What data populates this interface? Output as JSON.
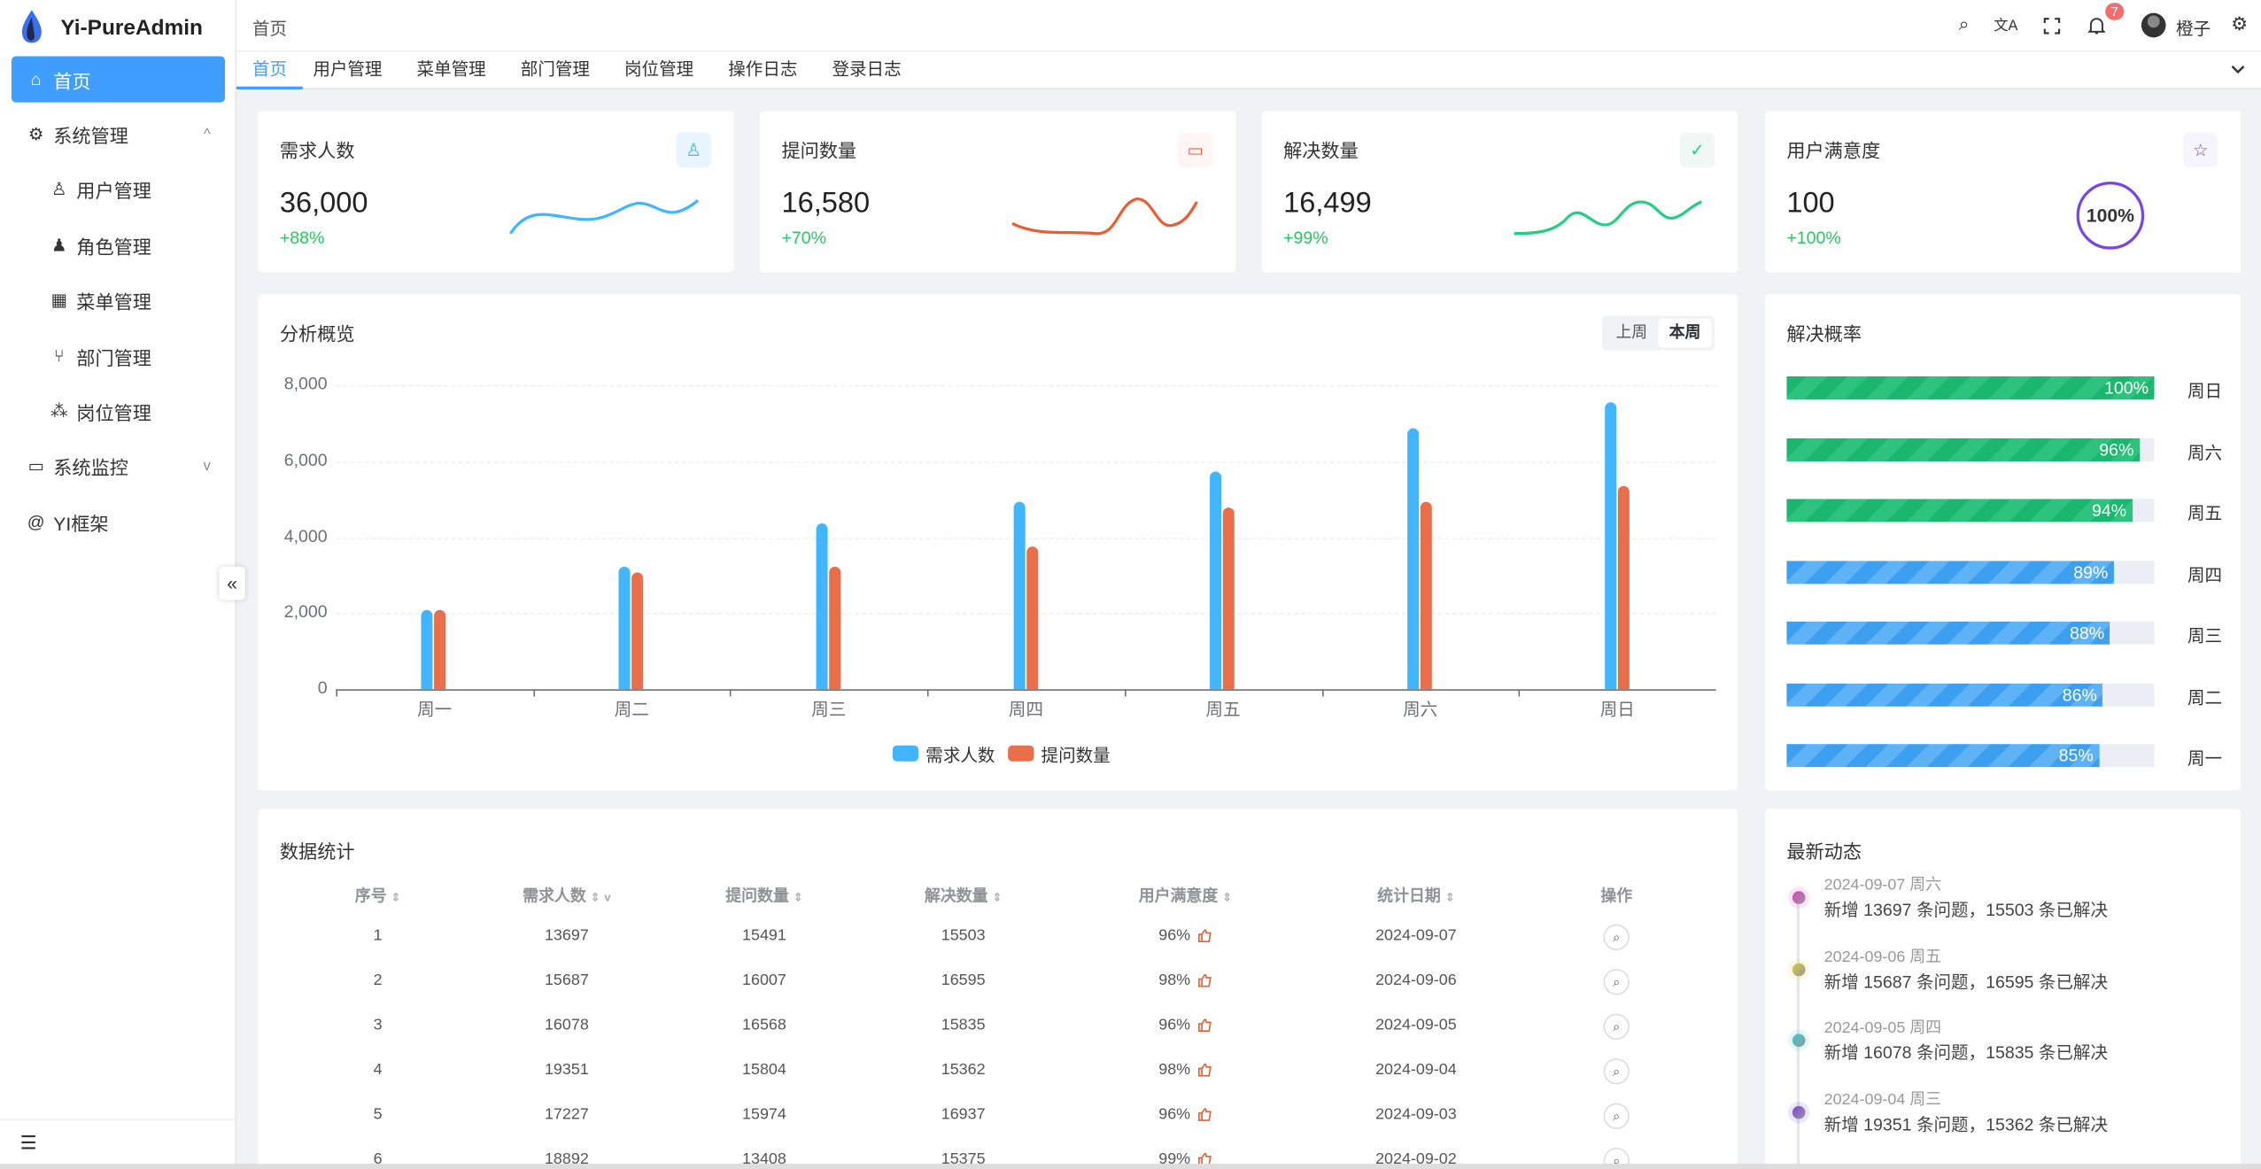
{
  "app": {
    "title": "Yi-PureAdmin"
  },
  "sidebar": {
    "items": [
      {
        "label": "首页",
        "icon": "home-icon",
        "active": true
      },
      {
        "label": "系统管理",
        "icon": "gear-icon",
        "expanded": true
      },
      {
        "label": "用户管理",
        "icon": "user-icon"
      },
      {
        "label": "角色管理",
        "icon": "role-icon"
      },
      {
        "label": "菜单管理",
        "icon": "grid-icon"
      },
      {
        "label": "部门管理",
        "icon": "branch-icon"
      },
      {
        "label": "岗位管理",
        "icon": "network-icon"
      },
      {
        "label": "系统监控",
        "icon": "monitor-icon"
      },
      {
        "label": "YI框架",
        "icon": "at-icon"
      }
    ]
  },
  "header": {
    "breadcrumb": "首页",
    "notifications": "7",
    "user": "橙子"
  },
  "tabs": [
    "首页",
    "用户管理",
    "菜单管理",
    "部门管理",
    "岗位管理",
    "操作日志",
    "登录日志"
  ],
  "stats": [
    {
      "title": "需求人数",
      "value": "36,000",
      "change": "+88%",
      "color": "#41b6ff",
      "bg": "#e8f4ff"
    },
    {
      "title": "提问数量",
      "value": "16,580",
      "change": "+70%",
      "color": "#e85f33",
      "bg": "#fff5f4"
    },
    {
      "title": "解决数量",
      "value": "16,499",
      "change": "+99%",
      "color": "#26ce83",
      "bg": "#eff8f4"
    },
    {
      "title": "用户满意度",
      "value": "100",
      "change": "+100%",
      "color": "#7846e5",
      "bg": "#f6f4fe",
      "gauge": "100%"
    }
  ],
  "overview": {
    "title": "分析概览",
    "buttons": [
      "上周",
      "本周"
    ],
    "active": "本周"
  },
  "chart_data": {
    "type": "bar",
    "categories": [
      "周一",
      "周二",
      "周三",
      "周四",
      "周五",
      "周六",
      "周日"
    ],
    "series": [
      {
        "name": "需求人数",
        "color": "#41b6ff",
        "values": [
          2100,
          3220,
          4360,
          4920,
          5720,
          6860,
          7540
        ]
      },
      {
        "name": "提问数量",
        "color": "#e86f4a",
        "values": [
          2100,
          3070,
          3220,
          3750,
          4770,
          4920,
          5340
        ]
      }
    ],
    "yticks": [
      "0",
      "2,000",
      "4,000",
      "6,000",
      "8,000"
    ],
    "ylim": [
      0,
      8000
    ],
    "legend": "bottom"
  },
  "rate": {
    "title": "解决概率",
    "items": [
      {
        "day": "周日",
        "pct": 100,
        "label": "100%"
      },
      {
        "day": "周六",
        "pct": 96,
        "label": "96%"
      },
      {
        "day": "周五",
        "pct": 94,
        "label": "94%"
      },
      {
        "day": "周四",
        "pct": 89,
        "label": "89%"
      },
      {
        "day": "周三",
        "pct": 88,
        "label": "88%"
      },
      {
        "day": "周二",
        "pct": 86,
        "label": "86%"
      },
      {
        "day": "周一",
        "pct": 85,
        "label": "85%"
      }
    ]
  },
  "table": {
    "title": "数据统计",
    "columns": [
      "序号",
      "需求人数",
      "提问数量",
      "解决数量",
      "用户满意度",
      "统计日期",
      "操作"
    ],
    "rows": [
      [
        "1",
        "13697",
        "15491",
        "15503",
        "96%",
        "2024-09-07"
      ],
      [
        "2",
        "15687",
        "16007",
        "16595",
        "98%",
        "2024-09-06"
      ],
      [
        "3",
        "16078",
        "16568",
        "15835",
        "96%",
        "2024-09-05"
      ],
      [
        "4",
        "19351",
        "15804",
        "15362",
        "98%",
        "2024-09-04"
      ],
      [
        "5",
        "17227",
        "15974",
        "16937",
        "96%",
        "2024-09-03"
      ],
      [
        "6",
        "18892",
        "13408",
        "15375",
        "99%",
        "2024-09-02"
      ]
    ]
  },
  "activity": {
    "title": "最新动态",
    "items": [
      {
        "date": "2024-09-07 周六",
        "text": "新增 13697 条问题，15503 条已解决",
        "color": "#e040c0"
      },
      {
        "date": "2024-09-06 周五",
        "text": "新增 15687 条问题，16595 条已解决",
        "color": "#d8c83a"
      },
      {
        "date": "2024-09-05 周四",
        "text": "新增 16078 条问题，15835 条已解决",
        "color": "#3cc9c9"
      },
      {
        "date": "2024-09-04 周三",
        "text": "新增 19351 条问题，15362 条已解决",
        "color": "#8040e0"
      }
    ]
  }
}
